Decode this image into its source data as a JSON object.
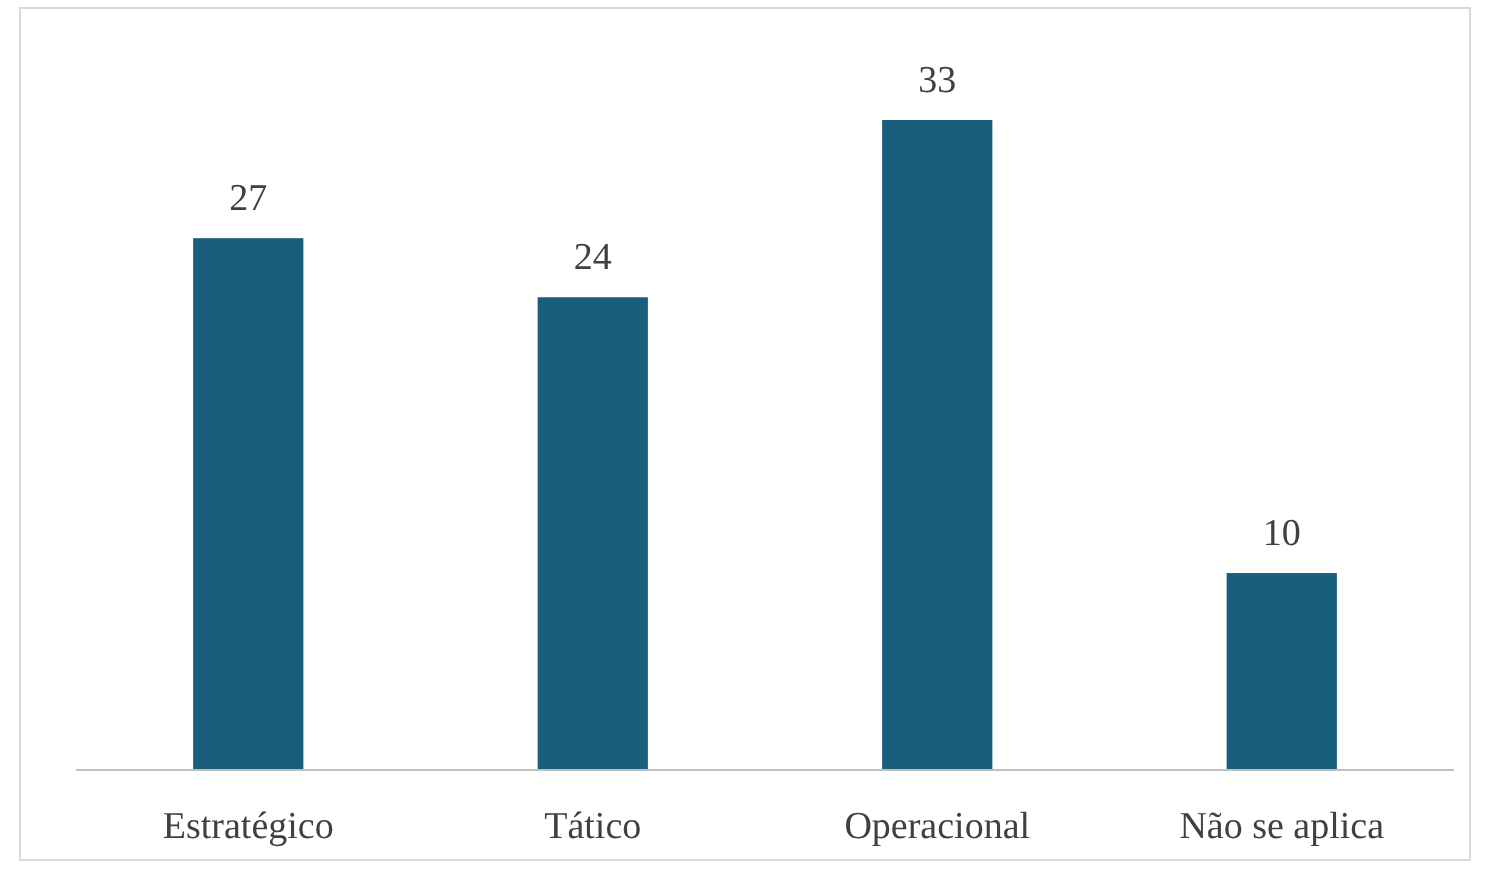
{
  "chart_data": {
    "type": "bar",
    "categories": [
      "Estratégico",
      "Tático",
      "Operacional",
      "Não se aplica"
    ],
    "values": [
      27,
      24,
      33,
      10
    ],
    "color": "#1a5e7e",
    "data_labels": true
  }
}
